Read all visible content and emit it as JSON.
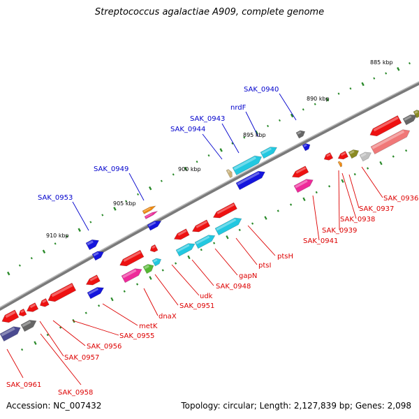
{
  "title": "Streptococcus agalactiae A909, complete genome",
  "footer": {
    "accession": "Accession: NC_007432",
    "info": "Topology: circular; Length: 2,127,839 bp; Genes: 2,098"
  },
  "colors": {
    "backbone": "#7a7a7a",
    "forward_label": "#0000cc",
    "reverse_label": "#dd0000",
    "ticks": "#2a8a2a",
    "gene_palette": [
      "#ee1111",
      "#1515dd",
      "#22c8e0",
      "#ee2a9a",
      "#666666",
      "#55b833",
      "#f08a10",
      "#8a8a22",
      "#f07878",
      "#c9b27a",
      "#c0c0c0"
    ]
  },
  "scale_labels": [
    "885 kbp",
    "890 kbp",
    "895 kbp",
    "900 kbp",
    "905 kbp",
    "910 kbp"
  ],
  "forward_gene_labels": [
    "SAK_0940",
    "nrdF",
    "SAK_0943",
    "SAK_0944",
    "SAK_0949",
    "SAK_0953"
  ],
  "reverse_gene_labels": [
    "SAK_0936",
    "SAK_0937",
    "SAK_0938",
    "SAK_0939",
    "SAK_0941",
    "ptsH",
    "ptsI",
    "gapN",
    "SAK_0948",
    "udk",
    "SAK_0951",
    "dnaX",
    "metK",
    "SAK_0955",
    "SAK_0956",
    "SAK_0957",
    "SAK_0958",
    "SAK_0961"
  ]
}
